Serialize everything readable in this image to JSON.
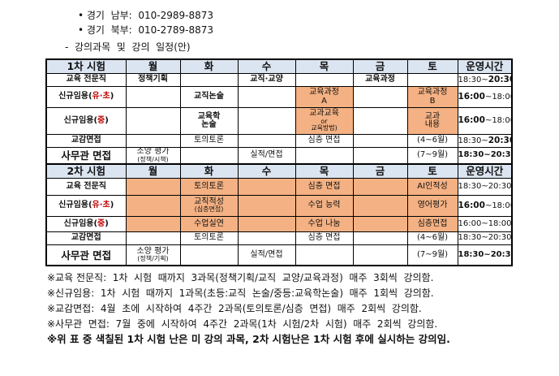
{
  "contacts": [
    "• 경기  남부:  010-2989-8873",
    "• 경기  북부:  010-2789-8873"
  ],
  "section_title": "-  강의과목  및  강의  일정(안)",
  "phase1": {
    "headers": [
      "1차 시험",
      "월",
      "화",
      "수",
      "목",
      "금",
      "토",
      "운영시간"
    ],
    "r1": {
      "label": "교육 전문직",
      "mon": "정책기획",
      "wed": "교직·교양",
      "fri": "교육과정",
      "time_a": "18:30~",
      "time_b": "20:30"
    },
    "r2": {
      "label_a": "신규임용(",
      "label_hl": "유·초",
      "label_c": ")",
      "tue": "교직논술",
      "thu_a": "교육과정",
      "thu_b": "A",
      "sat_a": "교육과정",
      "sat_b": "B",
      "time_a": "16:00",
      "time_b": "~18:00"
    },
    "r3": {
      "label_a": "신규임용(",
      "label_hl": "중",
      "label_c": ")",
      "tue_a": "교육학",
      "tue_b": "논술",
      "thu_a": "교과교육",
      "thu_b": "or",
      "thu_c": "교육방법)",
      "sat_a": "교과",
      "sat_b": "내용",
      "time_a": "16:00",
      "time_b": "~18:00"
    },
    "r4": {
      "label": "교감면접",
      "tue": "토의토론",
      "thu": "심층 면접",
      "sat": "(4~6월)",
      "time_a": "18:30~",
      "time_b": "20:30"
    },
    "r5": {
      "label": "사무관 면접",
      "mon_a": "소양 평가",
      "mon_b": "(정책/시책)",
      "wed": "실적/면접",
      "sat": "(7~9월)",
      "time": "18:30~20:30"
    }
  },
  "phase2": {
    "headers": [
      "2차 시험",
      "월",
      "화",
      "수",
      "목",
      "금",
      "토",
      "운영시간"
    ],
    "r1": {
      "label": "교육 전문직",
      "tue": "토의토론",
      "thu": "심층 면접",
      "sat": "AI인적성",
      "time": "18:30~20:30"
    },
    "r2": {
      "label_a": "신규임용(",
      "label_hl": "유·초",
      "label_c": ")",
      "tue_a": "교직적성",
      "tue_b": "(심층면접)",
      "thu": "수업 능력",
      "sat": "영어평가",
      "time_a": "16:00",
      "time_b": "~18:00"
    },
    "r3": {
      "label_a": "신규임용(",
      "label_hl": "중",
      "label_c": ")",
      "tue": "수업실연",
      "thu": "수업 나눔",
      "sat": "심층면접",
      "time": "16:00~18:00"
    },
    "r4": {
      "label": "교감면접",
      "tue": "토의토론",
      "thu": "심층 면접",
      "sat": "(4~6월)",
      "time": "18:30~20:30"
    },
    "r5": {
      "label": "사무관 면접",
      "mon_a": "소양 평가",
      "mon_b": "(정책/기획)",
      "wed": "실적/면접",
      "sat": "(7~9월)",
      "time": "18:30~20:30"
    }
  },
  "notes": [
    "※교육 전문직:  1차  시험  때까지  3과목(정책기획/교직  교양/교육과정)  매주  3회씩  강의함.",
    "※신규임용:  1차  시험  때까지  1과목(초등:교직  논술/중등:교육학논술)  매주  1회씩  강의함.",
    "※교감면접:  4월  초에  시작하여  4주간  2과목(토의토론/심층  면접)  매주  2회씩  강의함.",
    "※사무관  면접:  7월  중에  시작하여  4주간  2과목(1차  시험/2차  시험)  매주  2회씩  강의함."
  ],
  "warning": "※위 표 중 색칠된 1차 시험 난은 미 강의 과목, 2차 시험난은 1차 시험 후에 실시하는 강의임."
}
